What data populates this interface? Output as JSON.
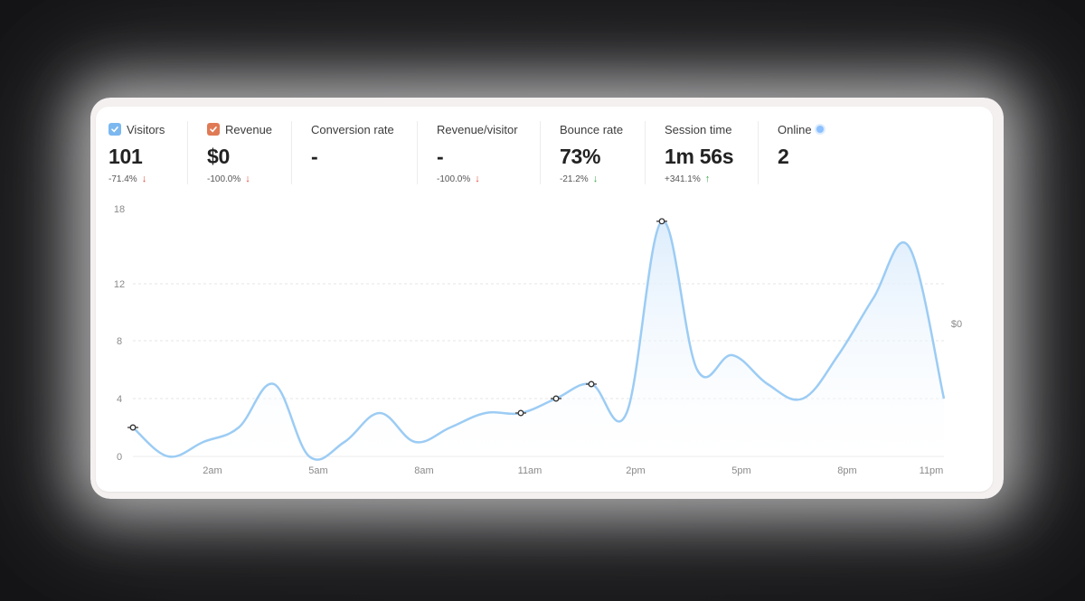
{
  "stats": [
    {
      "label": "Visitors",
      "value": "101",
      "change": "-71.4%",
      "direction": "down",
      "checkbox": true,
      "checkbox_color": "#7cb8f0"
    },
    {
      "label": "Revenue",
      "value": "$0",
      "change": "-100.0%",
      "direction": "down",
      "checkbox": true,
      "checkbox_color": "#e07a55"
    },
    {
      "label": "Conversion rate",
      "value": "-",
      "change": "",
      "direction": ""
    },
    {
      "label": "Revenue/visitor",
      "value": "-",
      "change": "-100.0%",
      "direction": "down"
    },
    {
      "label": "Bounce rate",
      "value": "73%",
      "change": "-21.2%",
      "direction": "down",
      "change_color": "#3aa84c"
    },
    {
      "label": "Session time",
      "value": "1m 56s",
      "change": "+341.1%",
      "direction": "up"
    },
    {
      "label": "Online",
      "value": "2",
      "change": "",
      "indicator": "online-dot"
    }
  ],
  "colors": {
    "line": "#9cccf4",
    "fill": "#dbecfc",
    "down": "#e04a3a",
    "up": "#3aa84c"
  },
  "chart_data": {
    "type": "area",
    "y_ticks": [
      "0",
      "4",
      "8",
      "12",
      "18"
    ],
    "x_ticks": [
      "2am",
      "5am",
      "8am",
      "11am",
      "2pm",
      "5pm",
      "8pm",
      "11pm"
    ],
    "right_label": "$0",
    "series": [
      {
        "name": "Visitors",
        "x": [
          "12am",
          "1am",
          "2am",
          "3am",
          "4am",
          "5am",
          "6am",
          "7am",
          "8am",
          "9am",
          "10am",
          "11am",
          "12pm",
          "1pm",
          "2pm",
          "3pm",
          "4pm",
          "5pm",
          "6pm",
          "7pm",
          "8pm",
          "9pm",
          "10pm",
          "11pm"
        ],
        "values": [
          2,
          0,
          1,
          2,
          5,
          0,
          1,
          3,
          1,
          2,
          3,
          3,
          4,
          5,
          3,
          17,
          6,
          7,
          5,
          4,
          7,
          11,
          15,
          4
        ],
        "markers": [
          "12am",
          "11am",
          "12pm",
          "1pm",
          "3pm"
        ]
      }
    ],
    "ylim": [
      0,
      18
    ]
  }
}
